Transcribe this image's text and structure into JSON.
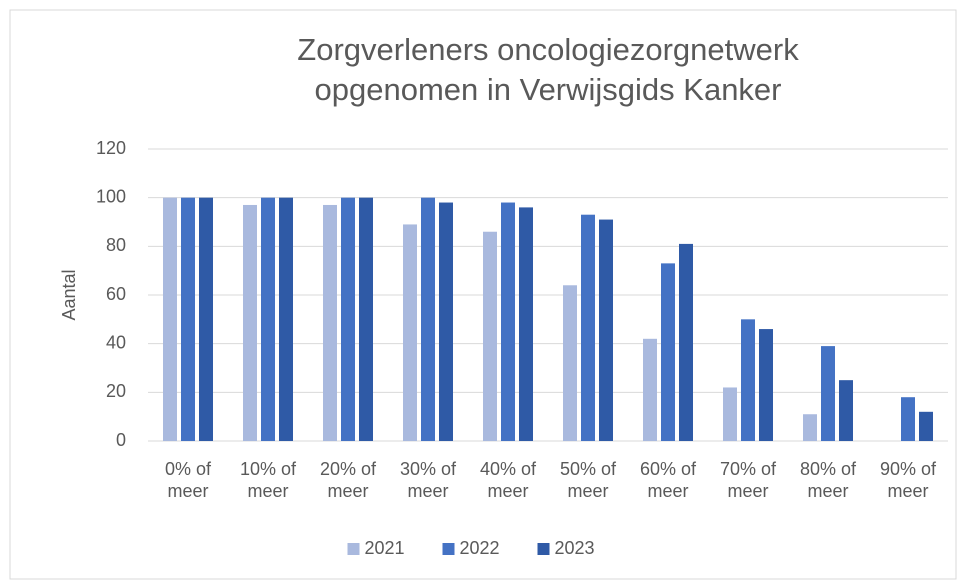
{
  "chart_data": {
    "type": "bar",
    "title": "Zorgverleners oncologiezorgnetwerk opgenomen in Verwijsgids Kanker",
    "y_label": "Aantal",
    "categories": [
      "0% of meer",
      "10% of meer",
      "20% of meer",
      "30% of meer",
      "40% of meer",
      "50% of meer",
      "60% of meer",
      "70% of meer",
      "80% of meer",
      "90% of meer"
    ],
    "series": [
      {
        "name": "2021",
        "color": "#a9b9de",
        "values": [
          100,
          97,
          97,
          89,
          86,
          64,
          42,
          22,
          11,
          0
        ]
      },
      {
        "name": "2022",
        "color": "#4472c4",
        "values": [
          100,
          100,
          100,
          100,
          98,
          93,
          73,
          50,
          39,
          18
        ]
      },
      {
        "name": "2023",
        "color": "#2f5aa6",
        "values": [
          100,
          100,
          100,
          98,
          96,
          91,
          81,
          46,
          25,
          12
        ]
      }
    ],
    "ylim": [
      0,
      120
    ],
    "yticks": [
      0,
      20,
      40,
      60,
      80,
      100,
      120
    ],
    "grid": true,
    "legend": "bottom"
  }
}
